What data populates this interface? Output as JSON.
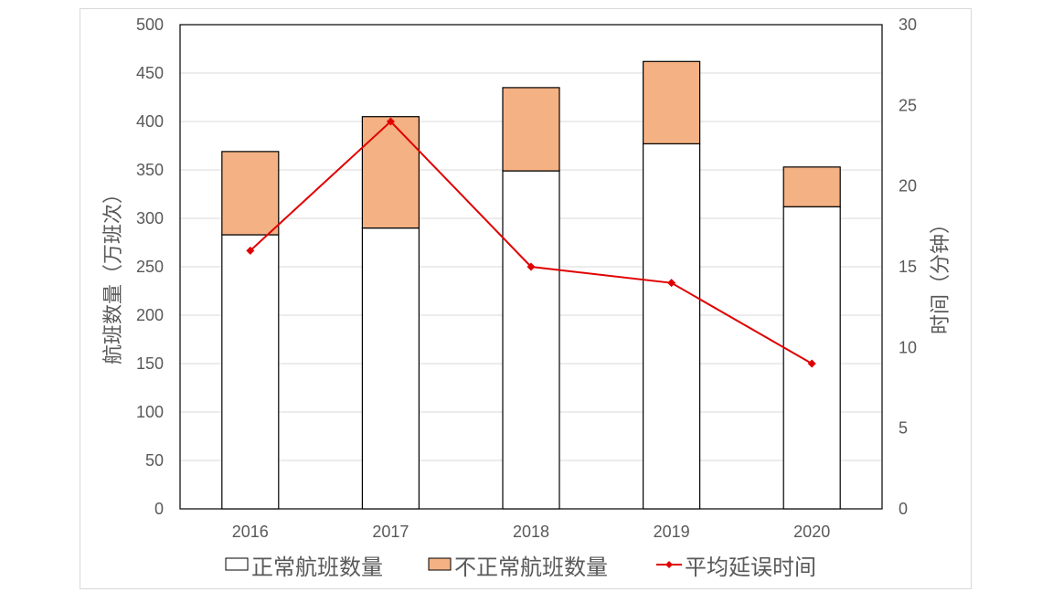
{
  "chart_data": {
    "type": "bar",
    "subtype": "stacked-bar-with-line",
    "title": "",
    "categories": [
      "2016",
      "2017",
      "2018",
      "2019",
      "2020"
    ],
    "series": [
      {
        "name": "正常航班数量",
        "type": "bar",
        "axis": "left",
        "color": "#ffffff",
        "values": [
          283,
          290,
          349,
          377,
          312
        ]
      },
      {
        "name": "不正常航班数量",
        "type": "bar",
        "axis": "left",
        "color": "#f4b183",
        "values": [
          86,
          115,
          86,
          85,
          41
        ]
      },
      {
        "name": "平均延误时间",
        "type": "line",
        "axis": "right",
        "color": "#e00000",
        "marker": "diamond",
        "values": [
          16,
          24,
          15,
          14,
          9
        ]
      }
    ],
    "totals": [
      369,
      405,
      435,
      462,
      353
    ],
    "xlabel": "",
    "ylabel": "航班数量（万班次）",
    "y2label": "时间（分钟）",
    "ylim": [
      0,
      500
    ],
    "y2lim": [
      0,
      30
    ],
    "yticks": [
      "0",
      "50",
      "100",
      "150",
      "200",
      "250",
      "300",
      "350",
      "400",
      "450",
      "500"
    ],
    "y2ticks": [
      "0",
      "5",
      "10",
      "15",
      "20",
      "25",
      "30"
    ],
    "grid": true,
    "legend_position": "bottom"
  },
  "legend": {
    "item0": "正常航班数量",
    "item1": "不正常航班数量",
    "item2": "平均延误时间"
  },
  "axes": {
    "ylabel": "航班数量（万班次）",
    "y2label": "时间（分钟）"
  }
}
